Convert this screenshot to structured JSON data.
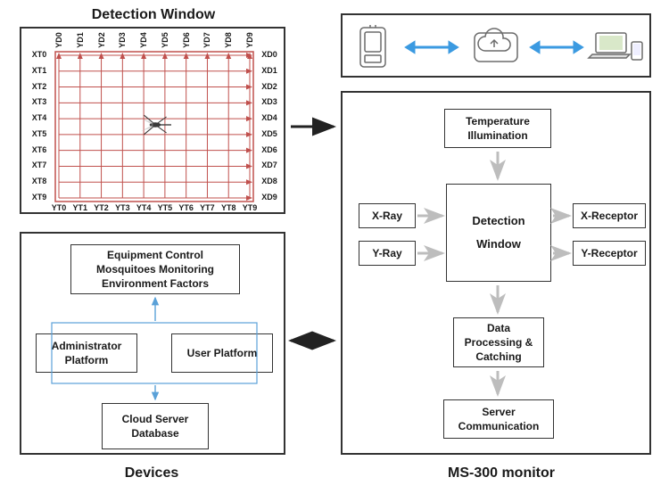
{
  "colors": {
    "panel_border": "#333333",
    "box_border": "#333333",
    "grid_line": "#c0504d",
    "grid_arrow": "#c0504d",
    "mosquito": "#3a3a3a",
    "cloud_arrow": "#3b9ae1",
    "device_icon": "#6b6b6b",
    "flow_arrow_gray": "#bdbdbd",
    "flow_arrow_black": "#222222",
    "blue_box_border": "#5aa1d8",
    "blue_arrow": "#5aa1d8",
    "bg": "#ffffff",
    "text": "#1a1a1a"
  },
  "titles": {
    "detection_window": "Detection Window",
    "devices": "Devices",
    "ms300": "MS-300 monitor"
  },
  "grid": {
    "x_top_labels": [
      "YD0",
      "YD1",
      "YD2",
      "YD3",
      "YD4",
      "YD5",
      "YD6",
      "YD7",
      "YD8",
      "YD9"
    ],
    "y_left_labels": [
      "XT0",
      "XT1",
      "XT2",
      "XT3",
      "XT4",
      "XT5",
      "XT6",
      "XT7",
      "XT8",
      "XT9"
    ],
    "y_right_labels": [
      "XD0",
      "XD1",
      "XD2",
      "XD3",
      "XD4",
      "XD5",
      "XD6",
      "XD7",
      "XD8",
      "XD9"
    ],
    "x_bottom_labels": [
      "YT0",
      "YT1",
      "YT2",
      "YT3",
      "YT4",
      "YT5",
      "YT6",
      "YT7",
      "YT8",
      "YT9"
    ]
  },
  "devices_panel": {
    "top_box": "Equipment Control\nMosquitoes Monitoring\nEnvironment Factors",
    "admin_box": "Administrator\nPlatform",
    "user_box": "User\nPlatform",
    "cloud_box": "Cloud\nServer\nDatabase"
  },
  "ms300_panel": {
    "temp_box": "Temperature\nIllumination",
    "xray_box": "X-Ray",
    "yray_box": "Y-Ray",
    "detection_box": "Detection\n\nWindow",
    "xrec_box": "X-Receptor",
    "yrec_box": "Y-Receptor",
    "data_box": "Data\nProcessing\n& Catching",
    "server_box": "Server\nCommunication"
  }
}
